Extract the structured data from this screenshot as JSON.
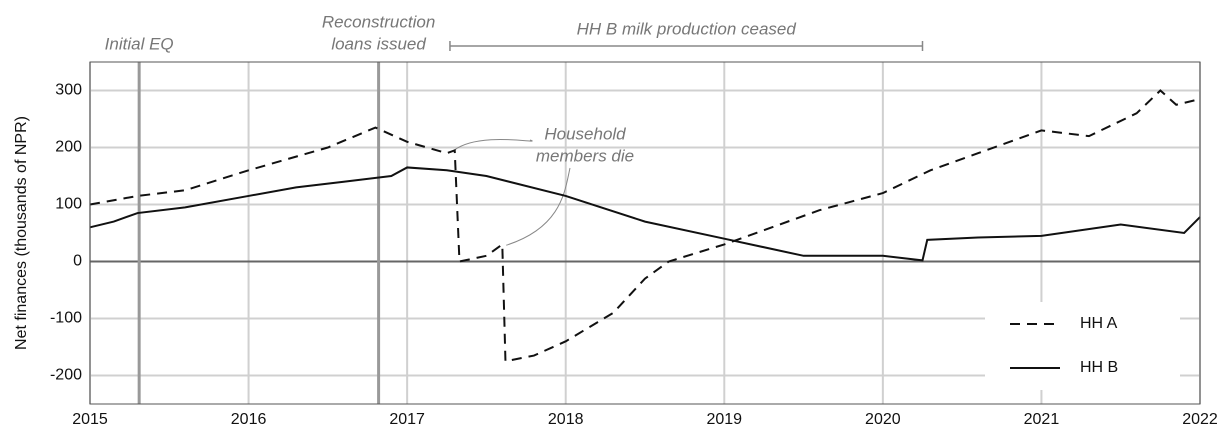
{
  "chart_data": {
    "type": "line",
    "ylabel": "Net finances (thousands of NPR)",
    "xlim": [
      2015,
      2022
    ],
    "ylim": [
      -250,
      350
    ],
    "xticks": [
      2015,
      2016,
      2017,
      2018,
      2019,
      2020,
      2021,
      2022
    ],
    "yticks": [
      -200,
      -100,
      0,
      100,
      200,
      300
    ],
    "grid": true,
    "legend": "lower right",
    "series": [
      {
        "name": "HH A",
        "color": "#111111",
        "dash": "dashed",
        "x": [
          2015,
          2015.3,
          2015.6,
          2016,
          2016.5,
          2016.8,
          2017,
          2017.25,
          2017.3,
          2017.33,
          2017.5,
          2017.6,
          2017.62,
          2017.8,
          2018,
          2018.3,
          2018.5,
          2018.65,
          2019,
          2019.3,
          2019.6,
          2020,
          2020.3,
          2020.6,
          2021,
          2021.3,
          2021.6,
          2021.75,
          2021.85,
          2022
        ],
        "values": [
          100,
          115,
          125,
          160,
          200,
          235,
          210,
          190,
          195,
          0,
          10,
          30,
          -175,
          -165,
          -140,
          -90,
          -30,
          0,
          30,
          60,
          90,
          120,
          160,
          190,
          230,
          220,
          260,
          300,
          275,
          285
        ]
      },
      {
        "name": "HH B",
        "color": "#111111",
        "dash": "solid",
        "x": [
          2015,
          2015.15,
          2015.3,
          2015.6,
          2016,
          2016.3,
          2016.6,
          2016.9,
          2017,
          2017.25,
          2017.5,
          2018,
          2018.5,
          2019,
          2019.5,
          2020,
          2020.25,
          2020.28,
          2020.6,
          2021,
          2021.5,
          2021.9,
          2022
        ],
        "values": [
          60,
          70,
          85,
          95,
          115,
          130,
          140,
          150,
          165,
          160,
          150,
          115,
          70,
          40,
          10,
          10,
          2,
          38,
          42,
          45,
          65,
          50,
          78
        ]
      }
    ],
    "events": [
      {
        "x": 2015.31,
        "text": [
          "Initial EQ"
        ]
      },
      {
        "x": 2016.82,
        "text": [
          "Reconstruction",
          "loans issued"
        ]
      }
    ],
    "span": {
      "x": [
        2017.27,
        2020.25
      ],
      "text": "HH B milk production ceased"
    },
    "callout": {
      "text": [
        "Household",
        "members die"
      ],
      "points": [
        {
          "x": 2017.27,
          "y": 195
        },
        {
          "x": 2017.6,
          "y": 25
        }
      ]
    }
  }
}
